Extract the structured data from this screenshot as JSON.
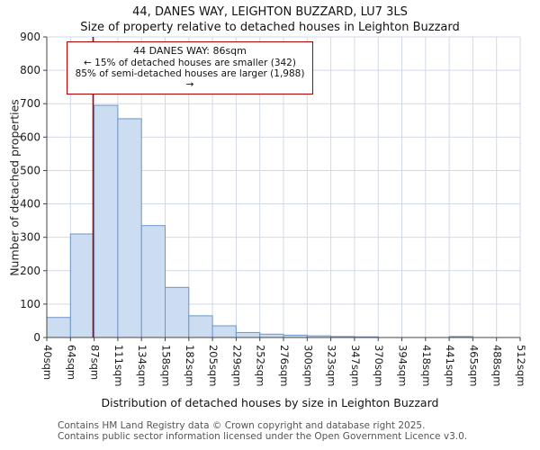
{
  "page": {
    "footer_line1": "Contains HM Land Registry data © Crown copyright and database right 2025.",
    "footer_line2": "Contains public sector information licensed under the Open Government Licence v3.0."
  },
  "chart_data": {
    "type": "bar",
    "title": "44, DANES WAY, LEIGHTON BUZZARD, LU7 3LS",
    "subtitle": "Size of property relative to detached houses in Leighton Buzzard",
    "xlabel": "Distribution of detached houses by size in Leighton Buzzard",
    "ylabel": "Number of detached properties",
    "ylim": [
      0,
      900
    ],
    "ytick_step": 100,
    "grid": true,
    "legend": "none",
    "bin_edges_sqm": [
      40,
      64,
      87,
      111,
      134,
      158,
      182,
      205,
      229,
      252,
      276,
      300,
      323,
      347,
      370,
      394,
      418,
      441,
      465,
      488,
      512
    ],
    "x_tick_labels": [
      "40sqm",
      "64sqm",
      "87sqm",
      "111sqm",
      "134sqm",
      "158sqm",
      "182sqm",
      "205sqm",
      "229sqm",
      "252sqm",
      "276sqm",
      "300sqm",
      "323sqm",
      "347sqm",
      "370sqm",
      "394sqm",
      "418sqm",
      "441sqm",
      "465sqm",
      "488sqm",
      "512sqm"
    ],
    "values": [
      60,
      310,
      695,
      655,
      335,
      150,
      65,
      35,
      15,
      10,
      7,
      5,
      3,
      2,
      0,
      0,
      0,
      3,
      0,
      0
    ],
    "marker": {
      "value_sqm": 86,
      "color": "#b00000"
    },
    "annotation": {
      "line1": "44 DANES WAY: 86sqm",
      "line2": "← 15% of detached houses are smaller (342)",
      "line3": "85% of semi-detached houses are larger (1,988) →"
    },
    "colors": {
      "bar_fill": "#ccdcf1",
      "bar_border": "#6b96c8",
      "grid": "#d2d9ea",
      "axis": "#444444",
      "text": "#1a1a1a"
    }
  }
}
